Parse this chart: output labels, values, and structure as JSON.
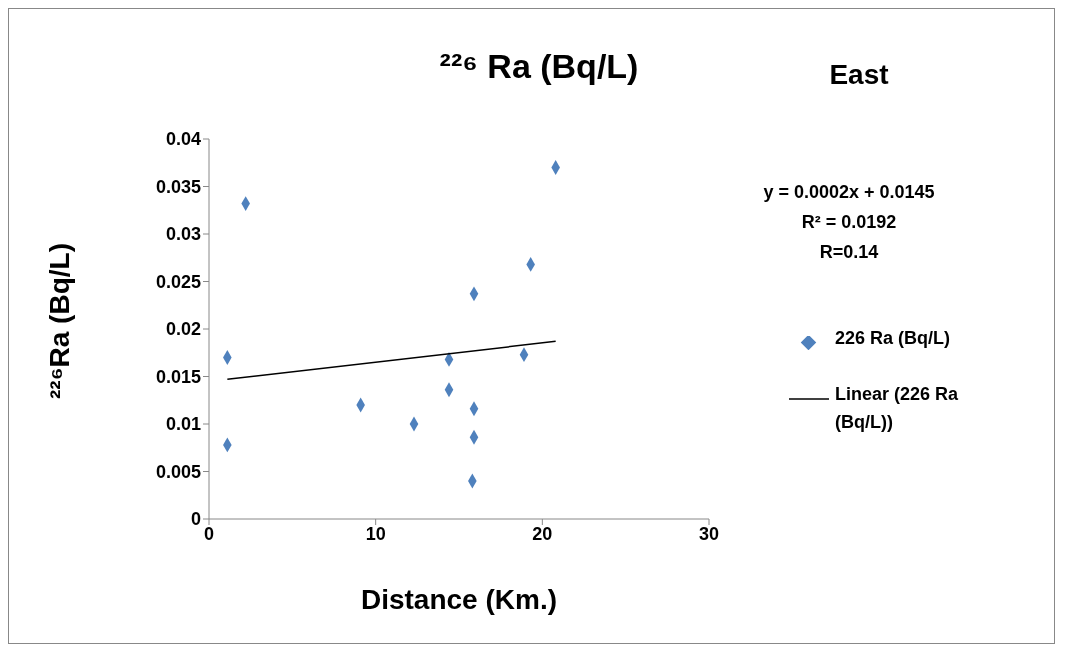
{
  "chart_data": {
    "type": "scatter",
    "title": "²²⁶ Ra (Bq/L)",
    "xlabel": "Distance (Km.)",
    "ylabel": "²²⁶Ra (Bq/L)",
    "annotations": [
      "East",
      "y = 0.0002x + 0.0145",
      "R² = 0.0192",
      "R=0.14"
    ],
    "x": [
      1.1,
      1.1,
      2.2,
      9.1,
      12.3,
      14.4,
      14.4,
      15.9,
      15.9,
      15.9,
      15.8,
      18.9,
      19.3,
      20.8
    ],
    "series": [
      {
        "name": "226 Ra (Bq/L)",
        "color": "#4f81bd",
        "values": [
          0.017,
          0.0078,
          0.0332,
          0.012,
          0.01,
          0.0168,
          0.0136,
          0.0237,
          0.0116,
          0.0086,
          0.004,
          0.0173,
          0.0268,
          0.037
        ]
      },
      {
        "name": "Linear (226 Ra (Bq/L))",
        "type": "line",
        "color": "#000000",
        "line_style": "solid",
        "marker": "none",
        "x": [
          1.1,
          20.8
        ],
        "values": [
          0.0147,
          0.0187
        ]
      }
    ],
    "xlim": [
      0,
      30
    ],
    "xticks": [
      0,
      10,
      20,
      30
    ],
    "ylim": [
      0,
      0.04
    ],
    "yticks": [
      0,
      0.005,
      0.01,
      0.015,
      0.02,
      0.025,
      0.03,
      0.035,
      0.04
    ],
    "grid": false,
    "legend": "right",
    "marker": "diamond"
  }
}
